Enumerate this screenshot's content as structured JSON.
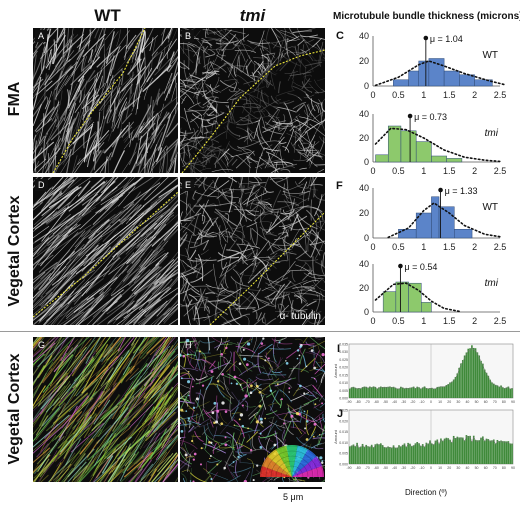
{
  "headers": {
    "wt": "WT",
    "tmi": "tmi",
    "chart_title": "Microtubule bundle thickness (microns)"
  },
  "rows": {
    "fma": "FMA",
    "vegetal_cortex_top": "Vegetal Cortex",
    "vegetal_cortex_bottom": "Vegetal Cortex"
  },
  "panels": {
    "A": "A",
    "B": "B",
    "C": "C",
    "D": "D",
    "E": "E",
    "F": "F",
    "G": "G",
    "H": "H",
    "I": "I",
    "J": "J"
  },
  "stain_label": "α- tubulin",
  "scale_bar": "5 μm",
  "direction_label": "Direction (º)",
  "chart_data": [
    {
      "id": "C-WT",
      "type": "bar",
      "genotype": "WT",
      "mean_label": "μ = 1.04",
      "mean": 1.04,
      "color": "#5b84c9",
      "bin_edges": [
        0.4,
        0.7,
        0.9,
        1.1,
        1.4,
        1.7,
        2.0,
        2.35
      ],
      "values": [
        5,
        12,
        20,
        22,
        12,
        9,
        5
      ],
      "curve": [
        [
          0.05,
          0.5
        ],
        [
          0.5,
          7
        ],
        [
          0.9,
          17
        ],
        [
          1.1,
          20
        ],
        [
          1.4,
          16
        ],
        [
          1.8,
          10
        ],
        [
          2.3,
          4
        ],
        [
          2.6,
          1
        ]
      ],
      "ylim": [
        0,
        40
      ],
      "yticks": [
        0,
        20,
        40
      ],
      "xlim": [
        0,
        2.5
      ],
      "xticks": [
        "0",
        "0.5",
        "1",
        "1.5",
        "2",
        "2.5"
      ]
    },
    {
      "id": "C-tmi",
      "type": "bar",
      "genotype": "tmi",
      "mean_label": "μ = 0.73",
      "mean": 0.73,
      "color": "#8dc96c",
      "bin_edges": [
        0.05,
        0.3,
        0.55,
        0.85,
        1.15,
        1.45,
        1.75
      ],
      "values": [
        6,
        30,
        26,
        17,
        5,
        3
      ],
      "curve": [
        [
          0.05,
          15
        ],
        [
          0.35,
          28
        ],
        [
          0.65,
          27
        ],
        [
          1.0,
          20
        ],
        [
          1.4,
          10
        ],
        [
          1.8,
          4
        ],
        [
          2.2,
          1.5
        ],
        [
          2.5,
          0.5
        ]
      ],
      "ylim": [
        0,
        40
      ],
      "yticks": [
        0,
        20,
        40
      ],
      "xlim": [
        0,
        2.5
      ],
      "xticks": [
        "0",
        "0.5",
        "1",
        "1.5",
        "2",
        "2.5"
      ]
    },
    {
      "id": "F-WT",
      "type": "bar",
      "genotype": "WT",
      "mean_label": "μ = 1.33",
      "mean": 1.33,
      "color": "#5b84c9",
      "bin_edges": [
        0.5,
        0.85,
        1.15,
        1.3,
        1.6,
        1.95
      ],
      "values": [
        7,
        20,
        33,
        25,
        7
      ],
      "curve": [
        [
          0.3,
          0.5
        ],
        [
          0.7,
          8
        ],
        [
          1.0,
          22
        ],
        [
          1.2,
          28
        ],
        [
          1.5,
          20
        ],
        [
          1.8,
          10
        ],
        [
          2.2,
          3
        ],
        [
          2.5,
          1
        ]
      ],
      "ylim": [
        0,
        40
      ],
      "yticks": [
        0,
        20,
        40
      ],
      "xlim": [
        0,
        2.5
      ],
      "xticks": [
        "0",
        "0.5",
        "1",
        "1.5",
        "2",
        "2.5"
      ]
    },
    {
      "id": "F-tmi",
      "type": "bar",
      "genotype": "tmi",
      "mean_label": "μ = 0.54",
      "mean": 0.54,
      "color": "#8dc96c",
      "bin_edges": [
        0.2,
        0.45,
        0.7,
        0.95,
        1.15
      ],
      "values": [
        17,
        25,
        24,
        8
      ],
      "curve": [
        [
          0.05,
          10
        ],
        [
          0.4,
          23
        ],
        [
          0.65,
          24
        ],
        [
          0.9,
          18
        ],
        [
          1.15,
          9
        ],
        [
          1.4,
          3
        ],
        [
          1.7,
          0.5
        ]
      ],
      "ylim": [
        0,
        40
      ],
      "yticks": [
        0,
        20,
        40
      ],
      "xlim": [
        0,
        2.5
      ],
      "xticks": [
        "0",
        "0.5",
        "1",
        "1.5",
        "2",
        "2.5"
      ]
    },
    {
      "id": "I",
      "type": "bar",
      "xlabel": "Direction (º)",
      "ylabel": "Amount",
      "xlim": [
        -90,
        90
      ],
      "yticks": [
        "0.000",
        "0.005",
        "0.010",
        "0.015",
        "0.020",
        "0.025",
        "0.030",
        "0.035"
      ],
      "ylim": [
        0,
        0.035
      ],
      "color": "#3f8a3a",
      "shape": "peak",
      "peak_direction": 45
    },
    {
      "id": "J",
      "type": "bar",
      "xlabel": "Direction (º)",
      "ylabel": "Amount",
      "xlim": [
        -90,
        90
      ],
      "yticks": [
        "0.000",
        "0.005",
        "0.010",
        "0.015",
        "0.020",
        "0.025"
      ],
      "ylim": [
        0,
        0.025
      ],
      "color": "#3f8a3a",
      "shape": "flat"
    }
  ]
}
